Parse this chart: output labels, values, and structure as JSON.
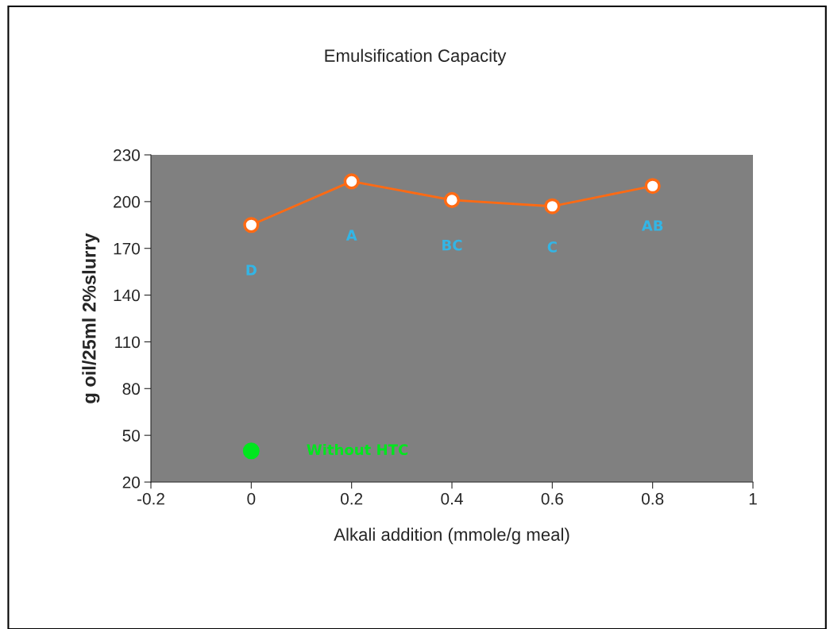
{
  "chart_data": {
    "type": "line",
    "title": "Emulsification Capacity",
    "xlabel": "Alkali addition (mmole/g meal)",
    "ylabel": "g oil/25ml 2%slurry",
    "series": [
      {
        "color": "#ff6a13",
        "x": [
          0,
          0.2,
          0.4,
          0.6,
          0.8
        ],
        "values": [
          185,
          213,
          201,
          197,
          210
        ],
        "marker": "circle"
      },
      {
        "type": "scatter",
        "color": "#00e61e",
        "x": [
          0
        ],
        "values": [
          40
        ],
        "marker": "circle"
      }
    ],
    "xlim": [
      -0.2,
      1
    ],
    "xticks": [
      -0.2,
      0,
      0.2,
      0.4,
      0.6,
      0.8,
      1
    ],
    "ylim": [
      20,
      230
    ],
    "yticks": [
      20,
      50,
      80,
      110,
      140,
      170,
      200,
      230
    ],
    "grid": false,
    "legend": false,
    "annotations": [
      "D",
      "A",
      "BC",
      "C",
      "AB",
      "Without HTC"
    ]
  }
}
